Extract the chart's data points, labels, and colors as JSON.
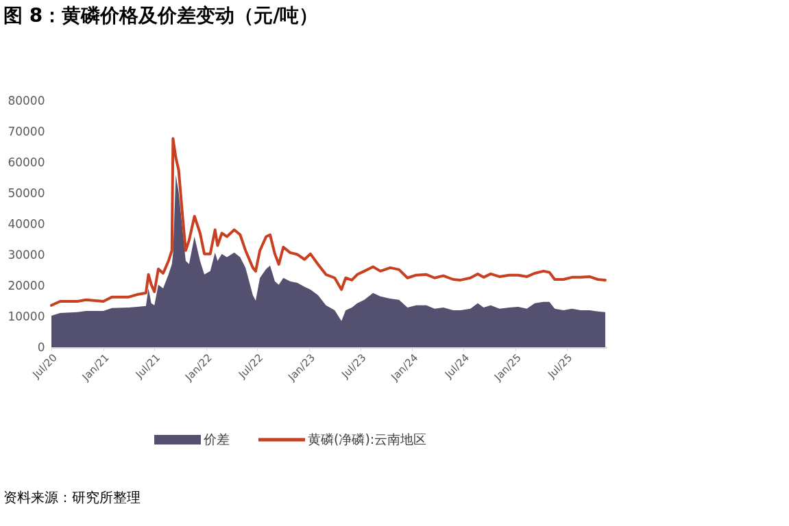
{
  "chart_data": {
    "type": "area",
    "title": "图 8：黄磷价格及价差变动（元/吨）",
    "x": [
      "2020-07-01",
      "2020-08-01",
      "2020-10-01",
      "2020-11-01",
      "2021-01-01",
      "2021-02-01",
      "2021-04-01",
      "2021-05-01",
      "2021-06-01",
      "2021-06-10",
      "2021-06-20",
      "2021-07-01",
      "2021-07-15",
      "2021-08-01",
      "2021-08-20",
      "2021-09-01",
      "2021-09-05",
      "2021-09-15",
      "2021-09-25",
      "2021-10-10",
      "2021-10-20",
      "2021-11-01",
      "2021-11-20",
      "2021-12-10",
      "2021-12-25",
      "2022-01-15",
      "2022-02-01",
      "2022-02-10",
      "2022-02-25",
      "2022-03-15",
      "2022-04-10",
      "2022-05-01",
      "2022-05-20",
      "2022-06-15",
      "2022-06-25",
      "2022-07-10",
      "2022-08-01",
      "2022-08-15",
      "2022-09-01",
      "2022-09-15",
      "2022-10-01",
      "2022-10-25",
      "2022-11-20",
      "2022-12-15",
      "2023-01-05",
      "2023-02-01",
      "2023-03-01",
      "2023-04-01",
      "2023-04-25",
      "2023-05-10",
      "2023-06-01",
      "2023-06-20",
      "2023-07-15",
      "2023-08-15",
      "2023-09-10",
      "2023-10-15",
      "2023-11-15",
      "2023-12-15",
      "2024-01-15",
      "2024-02-20",
      "2024-03-20",
      "2024-04-20",
      "2024-05-25",
      "2024-06-20",
      "2024-07-25",
      "2024-08-20",
      "2024-09-10",
      "2024-10-05",
      "2024-11-05",
      "2024-12-10",
      "2025-01-10",
      "2025-02-10",
      "2025-03-10",
      "2025-04-10",
      "2025-05-01",
      "2025-05-20",
      "2025-06-20",
      "2025-07-20",
      "2025-08-20",
      "2025-09-20",
      "2025-10-20",
      "2025-11-15"
    ],
    "series": [
      {
        "name": "价差",
        "color": "#545070",
        "values": [
          10200,
          11100,
          11400,
          11800,
          11800,
          12700,
          12900,
          13100,
          13400,
          19100,
          14300,
          13600,
          20300,
          19100,
          23600,
          27000,
          30300,
          55900,
          50300,
          37000,
          28000,
          27000,
          35900,
          28000,
          23600,
          24700,
          30700,
          28000,
          30300,
          29200,
          30700,
          29200,
          25800,
          16900,
          15100,
          22500,
          25400,
          26500,
          21400,
          20300,
          22500,
          21400,
          20900,
          19600,
          18700,
          16900,
          13600,
          12000,
          8500,
          12000,
          12900,
          14300,
          15400,
          17600,
          16500,
          15800,
          15400,
          12900,
          13600,
          13600,
          12500,
          12900,
          12000,
          12000,
          12500,
          14300,
          12900,
          13600,
          12500,
          12900,
          13100,
          12500,
          14300,
          14700,
          14700,
          12500,
          12000,
          12500,
          12000,
          12000,
          11600,
          11400
        ]
      },
      {
        "name": "黄磷(净磷):云南地区",
        "type": "line",
        "color": "#c8401f",
        "values": [
          13600,
          14900,
          14900,
          15400,
          14900,
          16300,
          16300,
          17100,
          17600,
          23600,
          20300,
          18000,
          25400,
          24000,
          28000,
          31400,
          67700,
          61500,
          57500,
          41400,
          31400,
          34700,
          42500,
          37000,
          30300,
          30300,
          38100,
          33000,
          37000,
          35900,
          38100,
          36500,
          31400,
          25800,
          24700,
          31400,
          35900,
          36500,
          30300,
          26900,
          32500,
          30700,
          30100,
          28500,
          30300,
          26900,
          23600,
          22500,
          18700,
          22500,
          21800,
          23600,
          24700,
          26100,
          24700,
          25800,
          25200,
          22500,
          23400,
          23600,
          22500,
          23200,
          22000,
          21800,
          22500,
          23800,
          22700,
          23800,
          22900,
          23400,
          23400,
          22900,
          24000,
          24700,
          24300,
          22000,
          22000,
          22700,
          22700,
          22900,
          22000,
          21800
        ]
      }
    ],
    "xlim": [
      "2020-07-01",
      "2025-11-20"
    ],
    "xticks": [
      {
        "value": "2020-07-01",
        "label": "Jul/20"
      },
      {
        "value": "2021-01-01",
        "label": "Jan/21"
      },
      {
        "value": "2021-07-01",
        "label": "Jul/21"
      },
      {
        "value": "2022-01-01",
        "label": "Jan/22"
      },
      {
        "value": "2022-07-01",
        "label": "Jul/22"
      },
      {
        "value": "2023-01-01",
        "label": "Jan/23"
      },
      {
        "value": "2023-07-01",
        "label": "Jul/23"
      },
      {
        "value": "2024-01-01",
        "label": "Jan/24"
      },
      {
        "value": "2024-07-01",
        "label": "Jul/24"
      },
      {
        "value": "2025-01-01",
        "label": "Jan/25"
      },
      {
        "value": "2025-07-01",
        "label": "Jul/25"
      }
    ],
    "ylim": [
      0,
      80000
    ],
    "yticks": [
      0,
      10000,
      20000,
      30000,
      40000,
      50000,
      60000,
      70000,
      80000
    ],
    "grid": false,
    "legend": "bottom",
    "annotations": [
      "资料来源：研究所整理"
    ]
  }
}
